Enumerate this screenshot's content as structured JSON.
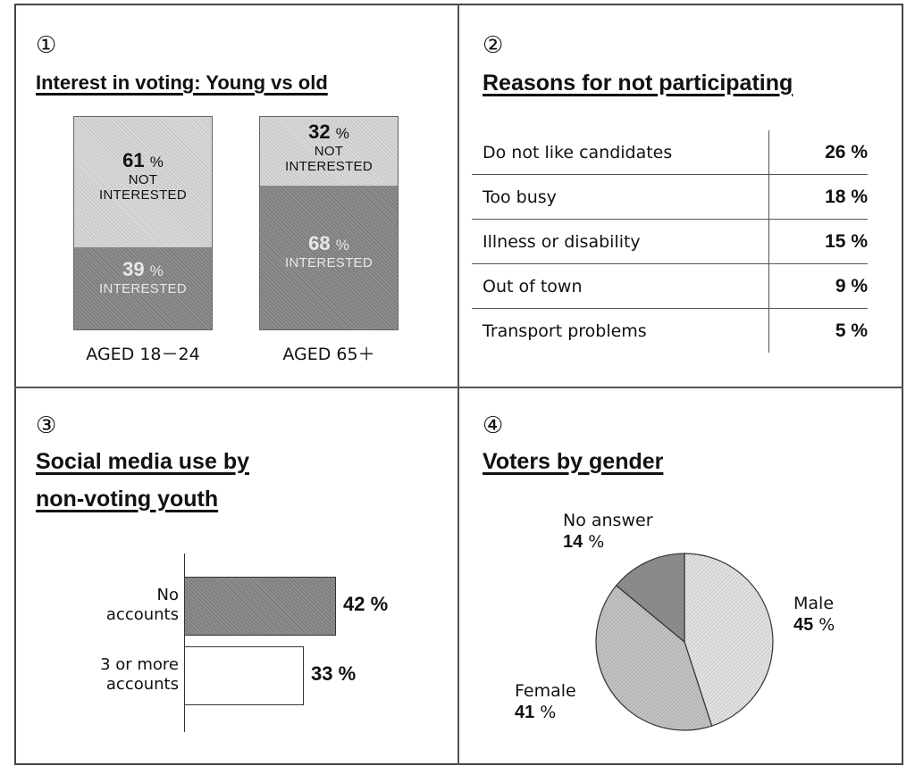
{
  "panels": {
    "p1": {
      "number": "①",
      "title": "Interest in voting: Young vs old"
    },
    "p2": {
      "number": "②",
      "title": "Reasons for not participating"
    },
    "p3": {
      "number": "③",
      "title_line1": "Social media use by",
      "title_line2": "non-voting youth"
    },
    "p4": {
      "number": "④",
      "title": "Voters by gender"
    }
  },
  "chart_data": [
    {
      "type": "bar",
      "stacked": true,
      "title": "Interest in voting: Young vs old",
      "categories": [
        "AGED 18－24",
        "AGED 65＋"
      ],
      "unit": "%",
      "series": [
        {
          "name": "NOT INTERESTED",
          "values": [
            61,
            32
          ]
        },
        {
          "name": "INTERESTED",
          "values": [
            39,
            68
          ]
        }
      ],
      "ylim": [
        0,
        100
      ]
    },
    {
      "type": "table",
      "title": "Reasons for not participating",
      "rows": [
        {
          "label": "Do not like candidates",
          "value": "26",
          "unit": "%"
        },
        {
          "label": "Too busy",
          "value": "18",
          "unit": "%"
        },
        {
          "label": "Illness or disability",
          "value": "15",
          "unit": "%"
        },
        {
          "label": "Out of town",
          "value": "9",
          "unit": "%"
        },
        {
          "label": "Transport problems",
          "value": "5",
          "unit": "%"
        }
      ]
    },
    {
      "type": "bar",
      "orientation": "horizontal",
      "title": "Social media use by non-voting youth",
      "categories": [
        [
          "No",
          "accounts"
        ],
        [
          "3 or more",
          "accounts"
        ]
      ],
      "values": [
        42,
        33
      ],
      "unit": "%",
      "colors": [
        "#8f8f8f",
        "#ffffff"
      ]
    },
    {
      "type": "pie",
      "title": "Voters by gender",
      "slices": [
        {
          "label": "Male",
          "value": 45
        },
        {
          "label": "Female",
          "value": 41
        },
        {
          "label": "No answer",
          "value": 14
        }
      ],
      "unit": "%",
      "colors": [
        "#e4e4e4",
        "#c4c4c4",
        "#8f8f8f"
      ]
    }
  ]
}
